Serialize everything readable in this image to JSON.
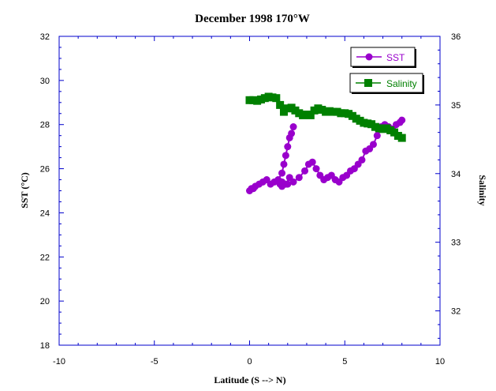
{
  "chart_data": {
    "type": "line",
    "title": "December 1998 170°W",
    "xlabel": "Latitude (S --> N)",
    "ylabel": "SST (°C)",
    "y2label": "Salinity",
    "xlim": [
      -10,
      10
    ],
    "ylim": [
      18,
      32
    ],
    "y2lim": [
      31.5,
      36
    ],
    "xticks": [
      "-10",
      "-5",
      "0",
      "5",
      "10"
    ],
    "yticks": [
      "18",
      "20",
      "22",
      "24",
      "26",
      "28",
      "30",
      "32"
    ],
    "y2ticks": [
      "32",
      "33",
      "34",
      "35",
      "36"
    ],
    "legend_position": "top-right",
    "series": [
      {
        "name": "SST",
        "axis": "left",
        "color": "#9900cc",
        "marker": "circle",
        "x": [
          0.0,
          0.1,
          0.2,
          0.3,
          0.5,
          0.7,
          0.9,
          1.1,
          1.3,
          1.5,
          1.7,
          1.8,
          1.9,
          2.0,
          2.1,
          2.2,
          2.3,
          2.1,
          1.9,
          1.7,
          1.6,
          1.7,
          2.0,
          2.3,
          2.6,
          2.9,
          3.1,
          3.3,
          3.5,
          3.7,
          3.9,
          4.1,
          4.3,
          4.5,
          4.7,
          4.9,
          5.1,
          5.3,
          5.5,
          5.7,
          5.9,
          6.1,
          6.3,
          6.5,
          6.7,
          6.9,
          7.1,
          7.3,
          7.5,
          7.7,
          7.9,
          8.0
        ],
        "y": [
          25.0,
          25.1,
          25.1,
          25.2,
          25.3,
          25.4,
          25.5,
          25.3,
          25.4,
          25.5,
          25.8,
          26.2,
          26.6,
          27.0,
          27.4,
          27.6,
          27.9,
          25.6,
          25.3,
          25.4,
          25.3,
          25.2,
          25.3,
          25.4,
          25.6,
          25.9,
          26.2,
          26.3,
          26.0,
          25.7,
          25.5,
          25.6,
          25.7,
          25.5,
          25.4,
          25.6,
          25.7,
          25.9,
          26.0,
          26.2,
          26.4,
          26.8,
          26.9,
          27.1,
          27.5,
          27.9,
          28.0,
          27.9,
          27.8,
          28.0,
          28.1,
          28.2
        ],
        "line_break_after_index": 16
      },
      {
        "name": "Salinity",
        "axis": "right",
        "color": "#008000",
        "marker": "square",
        "x": [
          0.0,
          0.2,
          0.4,
          0.6,
          0.8,
          1.0,
          1.2,
          1.4,
          1.6,
          1.8,
          2.0,
          2.2,
          2.4,
          2.6,
          2.8,
          3.0,
          3.2,
          3.4,
          3.6,
          3.8,
          4.0,
          4.2,
          4.4,
          4.6,
          4.8,
          5.0,
          5.2,
          5.4,
          5.6,
          5.8,
          6.0,
          6.2,
          6.4,
          6.6,
          6.8,
          7.0,
          7.2,
          7.4,
          7.6,
          7.8,
          8.0
        ],
        "y": [
          35.07,
          35.07,
          35.06,
          35.08,
          35.1,
          35.12,
          35.11,
          35.1,
          35.0,
          34.9,
          34.95,
          34.96,
          34.92,
          34.88,
          34.85,
          34.86,
          34.85,
          34.92,
          34.95,
          34.93,
          34.9,
          34.91,
          34.9,
          34.9,
          34.88,
          34.88,
          34.87,
          34.84,
          34.8,
          34.77,
          34.74,
          34.73,
          34.72,
          34.68,
          34.66,
          34.65,
          34.66,
          34.63,
          34.6,
          34.55,
          34.52
        ]
      }
    ]
  }
}
